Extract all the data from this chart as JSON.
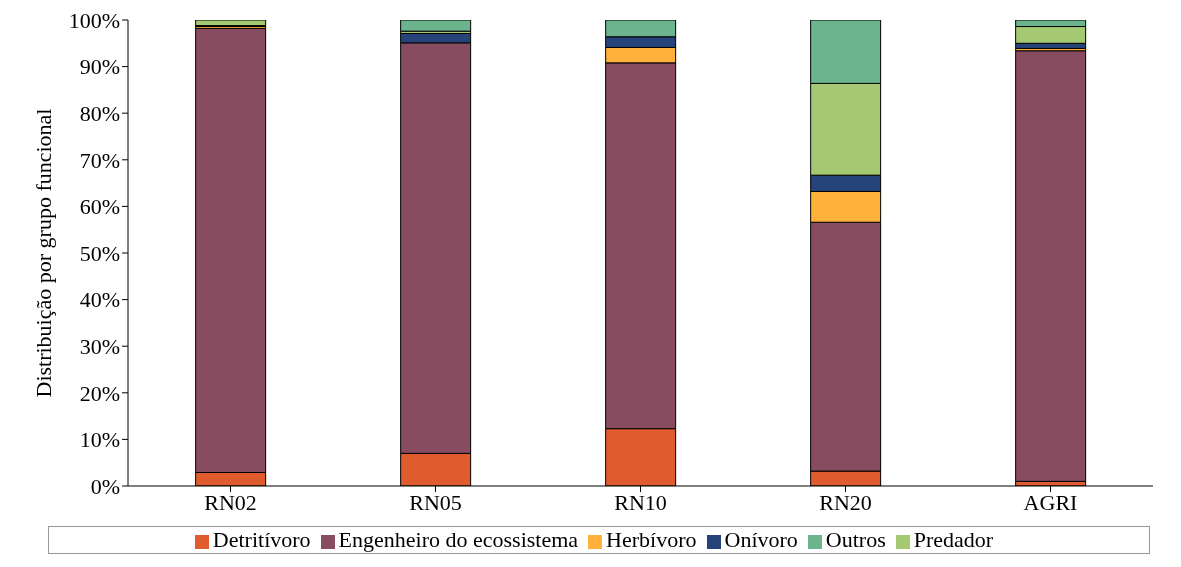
{
  "chart_data": {
    "type": "bar",
    "stacked": true,
    "ylabel": "Distribuição por grupo funcional",
    "categories": [
      "RN02",
      "RN05",
      "RN10",
      "RN20",
      "AGRI"
    ],
    "series": [
      {
        "name": "Detritívoro",
        "color": "#e05c2f",
        "values": [
          2.9,
          7.0,
          12.3,
          3.2,
          1.0
        ]
      },
      {
        "name": "Engenheiro do ecossistema",
        "color": "#874c60",
        "values": [
          95.3,
          88.1,
          78.5,
          53.4,
          92.4
        ]
      },
      {
        "name": "Herbívoro",
        "color": "#ffb13b",
        "values": [
          0.4,
          0,
          3.3,
          6.6,
          0.5
        ]
      },
      {
        "name": "Onívoro",
        "color": "#26447a",
        "values": [
          0.2,
          2.0,
          2.3,
          3.5,
          1.1
        ]
      },
      {
        "name": "Predador",
        "color": "#a5c973",
        "values": [
          1.2,
          0.5,
          0,
          19.7,
          3.6
        ]
      },
      {
        "name": "Outros",
        "color": "#6bb48d",
        "values": [
          0,
          2.4,
          3.6,
          13.6,
          1.4
        ]
      }
    ],
    "ylim": [
      0,
      100
    ],
    "yticks": [
      {
        "value": 0,
        "label": "0%"
      },
      {
        "value": 10,
        "label": "10%"
      },
      {
        "value": 20,
        "label": "20%"
      },
      {
        "value": 30,
        "label": "30%"
      },
      {
        "value": 40,
        "label": "40%"
      },
      {
        "value": 50,
        "label": "50%"
      },
      {
        "value": 60,
        "label": "60%"
      },
      {
        "value": 70,
        "label": "70%"
      },
      {
        "value": 80,
        "label": "80%"
      },
      {
        "value": 90,
        "label": "90%"
      },
      {
        "value": 100,
        "label": "100%"
      }
    ],
    "grid": false,
    "legend": "bottom"
  }
}
